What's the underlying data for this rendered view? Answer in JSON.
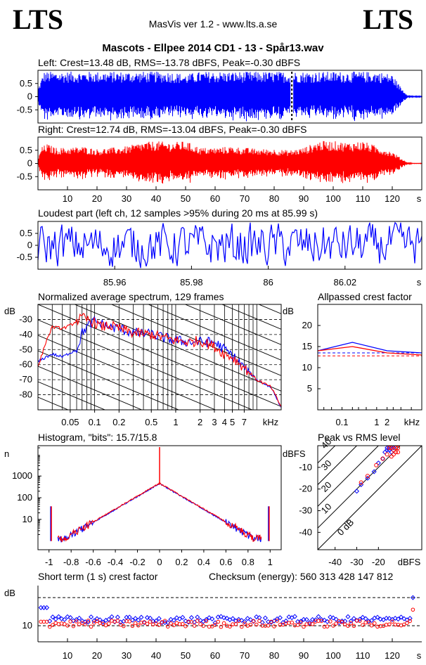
{
  "header": {
    "logo_left": "LTS",
    "logo_right": "LTS",
    "app_title": "MasVis ver 1.2 - www.lts.a.se",
    "file_title": "Mascots - Ellpee 2014 CD1 - 13 - Spår13.wav"
  },
  "colors": {
    "left": "#0000ff",
    "right": "#ff0000",
    "axis": "#000000"
  },
  "chart_data": [
    {
      "type": "area",
      "title": "Left: Crest=13.48 dB, RMS=-13.78 dBFS, Peak=-0.30 dBFS",
      "ylim": [
        -1,
        1
      ],
      "yticks": [
        "0.5",
        "0",
        "-0.5"
      ],
      "xlim": [
        0,
        130
      ],
      "marker_s": 85.99,
      "envelope_s": [
        0,
        2,
        5,
        10,
        15,
        20,
        25,
        30,
        35,
        40,
        45,
        50,
        55,
        60,
        65,
        70,
        75,
        80,
        85,
        90,
        95,
        100,
        105,
        110,
        115,
        120,
        123,
        125,
        127
      ],
      "envelope_amp": [
        0.3,
        0.95,
        0.95,
        0.95,
        0.95,
        0.95,
        0.95,
        0.95,
        0.95,
        0.95,
        0.95,
        0.85,
        0.95,
        0.95,
        0.95,
        0.95,
        0.95,
        0.95,
        0.95,
        0.95,
        0.95,
        0.95,
        0.95,
        0.95,
        0.95,
        0.85,
        0.35,
        0.08,
        0.02
      ]
    },
    {
      "type": "area",
      "title": "Right: Crest=12.74 dB, RMS=-13.04 dBFS, Peak=-0.30 dBFS",
      "ylim": [
        -1,
        1
      ],
      "yticks": [
        "0.5",
        "0",
        "-0.5"
      ],
      "xlim": [
        0,
        130
      ],
      "xticks": [
        "10",
        "20",
        "30",
        "40",
        "50",
        "60",
        "70",
        "80",
        "90",
        "100",
        "110",
        "120"
      ],
      "xunit": "s",
      "envelope_s": [
        0,
        1,
        3,
        6,
        10,
        15,
        20,
        25,
        30,
        35,
        40,
        45,
        50,
        55,
        60,
        65,
        70,
        75,
        80,
        85,
        90,
        95,
        100,
        105,
        110,
        115,
        120,
        123,
        125,
        127
      ],
      "envelope_amp": [
        0.1,
        0.6,
        0.75,
        0.6,
        0.6,
        0.65,
        0.55,
        0.6,
        0.65,
        0.8,
        0.85,
        0.8,
        0.85,
        0.6,
        0.6,
        0.65,
        0.6,
        0.55,
        0.55,
        0.5,
        0.6,
        0.85,
        0.85,
        0.8,
        0.85,
        0.65,
        0.45,
        0.2,
        0.05,
        0.01
      ]
    },
    {
      "type": "line",
      "title": "Loudest part (left  ch, 12 samples >95% during 20 ms at 85.99 s)",
      "ylim": [
        -1,
        1
      ],
      "yticks": [
        "0.5",
        "0",
        "-0.5"
      ],
      "xlim": [
        85.94,
        86.04
      ],
      "xticks": [
        "85.96",
        "85.98",
        "86",
        "86.02"
      ],
      "xunit": "s"
    },
    {
      "type": "line",
      "title": "Normalized average spectrum, 129 frames",
      "ylabel": "dB",
      "yticks": [
        "-30",
        "-40",
        "-50",
        "-60",
        "-70",
        "-80"
      ],
      "xticks": [
        "0.05",
        "0.1",
        "0.2",
        "0.5",
        "1",
        "2",
        "3",
        "4",
        "5",
        "7"
      ],
      "xunit": "kHz",
      "series": [
        {
          "color": "blue",
          "freq_khz": [
            0.02,
            0.025,
            0.03,
            0.04,
            0.05,
            0.06,
            0.07,
            0.08,
            0.1,
            0.12,
            0.15,
            0.2,
            0.3,
            0.5,
            0.7,
            1,
            1.5,
            2,
            3,
            4,
            5,
            7,
            10,
            15,
            20
          ],
          "db": [
            -58,
            -55,
            -53,
            -55,
            -52,
            -50,
            -39,
            -35,
            -31,
            -33,
            -35,
            -36,
            -39,
            -40,
            -42,
            -44,
            -45,
            -45,
            -45,
            -50,
            -54,
            -62,
            -70,
            -75,
            -88
          ]
        },
        {
          "color": "red",
          "freq_khz": [
            0.02,
            0.025,
            0.03,
            0.04,
            0.05,
            0.06,
            0.07,
            0.08,
            0.1,
            0.12,
            0.15,
            0.2,
            0.3,
            0.5,
            0.7,
            1,
            1.5,
            2,
            3,
            4,
            5,
            7,
            10,
            15,
            20
          ],
          "db": [
            -62,
            -45,
            -35,
            -36,
            -34,
            -31,
            -29,
            -30,
            -32,
            -35,
            -34,
            -36,
            -39,
            -40,
            -42,
            -44,
            -45,
            -44,
            -48,
            -53,
            -55,
            -62,
            -70,
            -75,
            -88
          ]
        }
      ]
    },
    {
      "type": "line",
      "title": "Allpassed crest factor",
      "ylabel": "dB",
      "yticks": [
        "20",
        "15",
        "10",
        "5"
      ],
      "xticks": [
        "0.1",
        "1",
        "2"
      ],
      "xunit": "kHz",
      "ylim": [
        0,
        25
      ],
      "series": [
        {
          "color": "blue",
          "freq_khz": [
            0.02,
            0.2,
            2,
            20
          ],
          "db": [
            14,
            16,
            14,
            13.5
          ]
        },
        {
          "color": "red",
          "freq_khz": [
            0.02,
            0.2,
            2,
            20
          ],
          "db": [
            14,
            15,
            13.5,
            13
          ]
        }
      ],
      "reference_db": [
        13.5,
        12.8
      ]
    },
    {
      "type": "line",
      "title": "Histogram, \"bits\": 15.7/15.8",
      "ylabel": "n",
      "yticks": [
        "1000",
        "100",
        "10"
      ],
      "xticks": [
        "-1",
        "-0.8",
        "-0.6",
        "-0.4",
        "-0.2",
        "0",
        "0.2",
        "0.4",
        "0.6",
        "0.8",
        "1"
      ],
      "xlim": [
        -1.1,
        1.1
      ]
    },
    {
      "type": "scatter",
      "title": "Peak vs RMS level",
      "ylabel": "dBFS",
      "xlabel": "dBFS",
      "yticks": [
        "-10",
        "-20",
        "-30",
        "-40"
      ],
      "xticks": [
        "-40",
        "-30",
        "-20"
      ],
      "diagonal_labels": [
        "40",
        "30",
        "20",
        "10",
        "0 dB"
      ],
      "series": [
        {
          "color": "blue",
          "points": [
            [
              -17,
              -3
            ],
            [
              -16,
              -1
            ],
            [
              -15,
              -2
            ],
            [
              -14,
              -1
            ],
            [
              -18,
              -6
            ],
            [
              -20,
              -8
            ],
            [
              -22,
              -12
            ],
            [
              -25,
              -15
            ],
            [
              -28,
              -18
            ],
            [
              -30,
              -21
            ],
            [
              -14,
              -3
            ],
            [
              -13,
              -1
            ],
            [
              -16,
              -2
            ],
            [
              -15,
              -1
            ]
          ]
        },
        {
          "color": "red",
          "points": [
            [
              -14,
              -1
            ],
            [
              -13,
              -2
            ],
            [
              -12,
              -3
            ],
            [
              -15,
              -1
            ],
            [
              -11,
              -1
            ],
            [
              -16,
              -4
            ],
            [
              -18,
              -6
            ],
            [
              -21,
              -9
            ],
            [
              -25,
              -14
            ],
            [
              -28,
              -17
            ],
            [
              -12,
              -1
            ],
            [
              -14,
              -5
            ],
            [
              -13,
              -4
            ],
            [
              -11,
              -3
            ]
          ]
        }
      ]
    },
    {
      "type": "scatter",
      "title": "Short term (1 s) crest factor",
      "subtitle": "Checksum (energy):   560 313 428 147 812",
      "ylabel": "dB",
      "yticks": [
        "10"
      ],
      "xticks": [
        "10",
        "20",
        "30",
        "40",
        "50",
        "60",
        "70",
        "80",
        "90",
        "100",
        "110",
        "120"
      ],
      "xunit": "s",
      "xlim": [
        0,
        130
      ],
      "series": [
        {
          "color": "blue",
          "base_db": 11.5,
          "last_db": 17
        },
        {
          "color": "red",
          "base_db": 10.5,
          "last_db": 14
        }
      ]
    }
  ]
}
